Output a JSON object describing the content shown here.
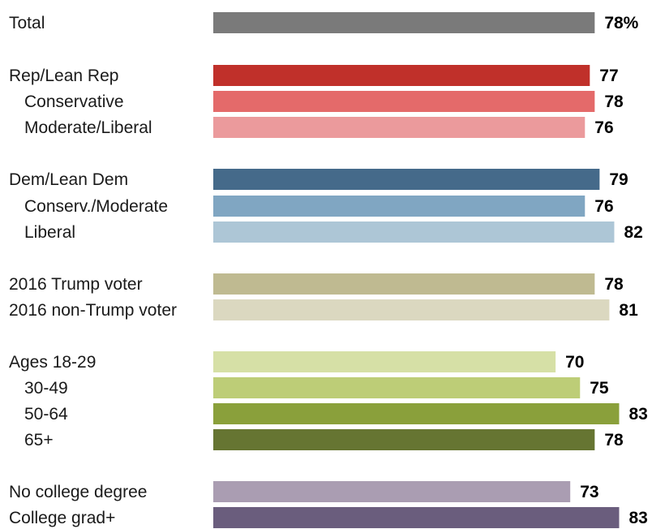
{
  "chart_data": {
    "type": "bar",
    "orientation": "horizontal",
    "title": "",
    "xlabel": "",
    "ylabel": "",
    "xlim": [
      0,
      83
    ],
    "grid": false,
    "legend": "none",
    "value_suffix_first": "%",
    "categories": [
      "Total",
      "Rep/Lean Rep",
      "Conservative",
      "Moderate/Liberal",
      "Dem/Lean Dem",
      "Conserv./Moderate",
      "Liberal",
      "2016 Trump voter",
      "2016 non-Trump voter",
      "Ages 18-29",
      "30-49",
      "50-64",
      "65+",
      "No college degree",
      "College grad+"
    ],
    "values": [
      78,
      77,
      78,
      76,
      79,
      76,
      82,
      78,
      81,
      70,
      75,
      83,
      78,
      73,
      83
    ],
    "indented": [
      false,
      false,
      true,
      true,
      false,
      true,
      true,
      false,
      false,
      false,
      true,
      true,
      true,
      false,
      false
    ],
    "colors": [
      "#7a7a7a",
      "#c0302a",
      "#e46a6a",
      "#eb9a9c",
      "#456a8a",
      "#80a6c2",
      "#adc6d6",
      "#bfba91",
      "#dbd8c0",
      "#d6e0a6",
      "#bdcd77",
      "#8aa03b",
      "#667532",
      "#aa9db2",
      "#6a5d7d"
    ]
  }
}
